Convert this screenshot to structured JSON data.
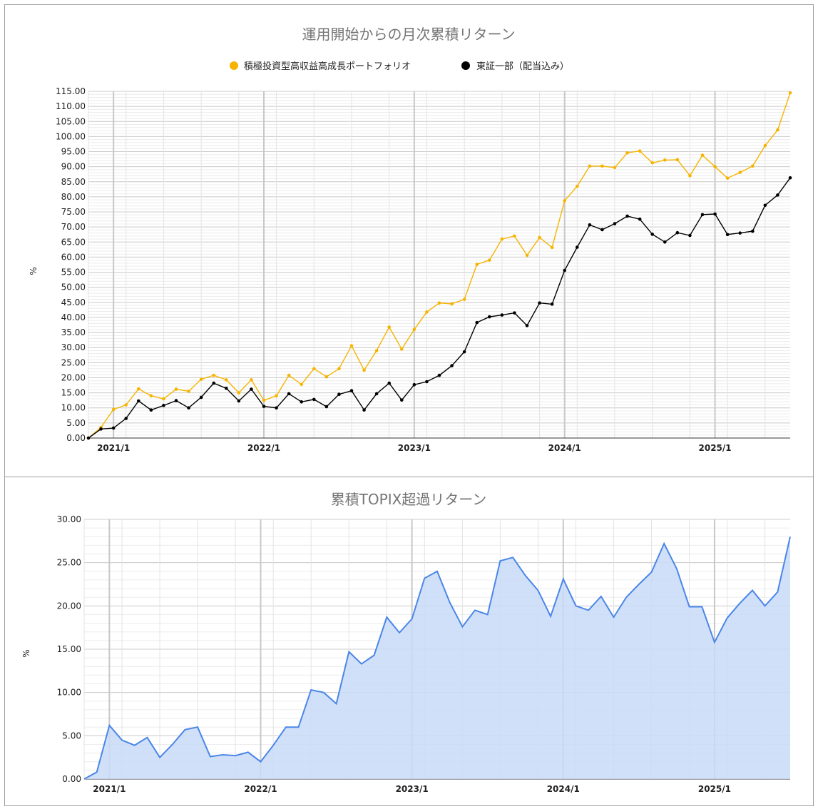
{
  "chart_data": [
    {
      "type": "line",
      "title": "運用開始からの月次累積リターン",
      "ylabel": "%",
      "ylim": [
        0,
        115
      ],
      "ytick_step": 5,
      "legend_position": "top",
      "x_tick_labels": [
        "2021/1",
        "2022/1",
        "2023/1",
        "2024/1",
        "2025/1"
      ],
      "x_tick_indices": [
        2,
        14,
        26,
        38,
        50
      ],
      "series": [
        {
          "name": "積極投資型高収益高成長ポートフォリオ",
          "color": "#f6b400",
          "values": [
            0,
            3.5,
            9.5,
            11,
            16.3,
            14,
            13,
            16.2,
            15.5,
            19.5,
            20.8,
            19.3,
            15,
            19.3,
            12.5,
            14,
            20.8,
            17.8,
            23,
            20.3,
            23,
            30.6,
            22.5,
            29,
            36.8,
            29.5,
            36,
            41.8,
            44.8,
            44.5,
            46,
            57.6,
            59,
            66,
            67,
            60.6,
            66.5,
            63.2,
            78.7,
            83.5,
            90.2,
            90.2,
            89.7,
            94.6,
            95.2,
            91.3,
            92.2,
            92.3,
            87,
            93.8,
            90,
            86.2,
            88.1,
            90.2,
            97,
            102.2,
            114.5
          ]
        },
        {
          "name": "東証一部（配当込み）",
          "color": "#000000",
          "values": [
            0,
            3,
            3.3,
            6.5,
            12.3,
            9.3,
            10.8,
            12.4,
            10,
            13.5,
            18.2,
            16.5,
            12.3,
            16.2,
            10.5,
            10,
            14.7,
            12,
            12.8,
            10.4,
            14.5,
            15.7,
            9.3,
            14.7,
            18.2,
            12.6,
            17.7,
            18.7,
            20.8,
            24,
            28.6,
            38.3,
            40.2,
            40.8,
            41.5,
            37.3,
            44.8,
            44.4,
            55.6,
            63.3,
            70.7,
            69.1,
            71.1,
            73.6,
            72.6,
            67.6,
            65,
            68.1,
            67.2,
            74.1,
            74.3,
            67.5,
            68,
            68.6,
            77.2,
            80.6,
            86.3
          ]
        }
      ]
    },
    {
      "type": "area",
      "title": "累積TOPIX超過リターン",
      "ylabel": "%",
      "ylim": [
        0,
        30
      ],
      "ytick_step": 5,
      "x_tick_labels": [
        "2021/1",
        "2022/1",
        "2023/1",
        "2024/1",
        "2025/1"
      ],
      "x_tick_indices": [
        2,
        14,
        26,
        38,
        50
      ],
      "series": [
        {
          "name": "",
          "color": "#4a86e8",
          "fill": "#c9daf8",
          "values": [
            0,
            0.8,
            6.2,
            4.5,
            3.9,
            4.8,
            2.5,
            4.0,
            5.7,
            6.0,
            2.6,
            2.8,
            2.7,
            3.1,
            2.0,
            3.9,
            6.0,
            6.0,
            10.3,
            10.0,
            8.7,
            14.7,
            13.3,
            14.3,
            18.7,
            16.9,
            18.5,
            23.2,
            24.0,
            20.4,
            17.6,
            19.5,
            19.0,
            25.2,
            25.6,
            23.5,
            21.8,
            18.8,
            23.1,
            20.0,
            19.5,
            21.1,
            18.7,
            21.0,
            22.5,
            23.9,
            27.2,
            24.3,
            19.9,
            19.9,
            15.8,
            18.6,
            20.3,
            21.8,
            20.0,
            21.6,
            28.0
          ]
        }
      ]
    }
  ]
}
